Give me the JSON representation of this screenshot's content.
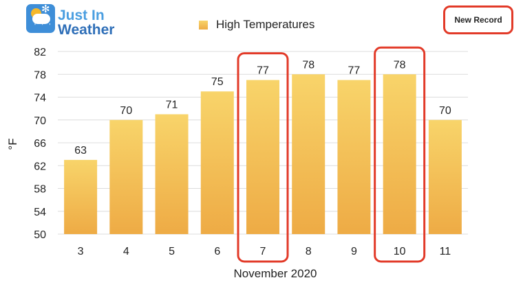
{
  "logo": {
    "line1": "Just In",
    "line2": "Weather"
  },
  "legend": {
    "label": "High Temperatures"
  },
  "record_note": {
    "label": "New Record",
    "color": "#e23a28"
  },
  "colors": {
    "bar_top": "#f8d46a",
    "bar_bottom": "#eeab45",
    "highlight": "#e23a28"
  },
  "chart_data": {
    "type": "bar",
    "categories": [
      "3",
      "4",
      "5",
      "6",
      "7",
      "8",
      "9",
      "10",
      "11"
    ],
    "series": [
      {
        "name": "High Temperatures",
        "values": [
          63,
          70,
          71,
          75,
          77,
          78,
          77,
          78,
          70
        ]
      }
    ],
    "xlabel": "November 2020",
    "ylabel": "°F",
    "ylim": [
      50,
      82
    ],
    "yticks": [
      50,
      54,
      58,
      62,
      66,
      70,
      74,
      78,
      82
    ],
    "grid": true,
    "legend_position": "top",
    "record_categories": [
      "7",
      "10"
    ]
  }
}
